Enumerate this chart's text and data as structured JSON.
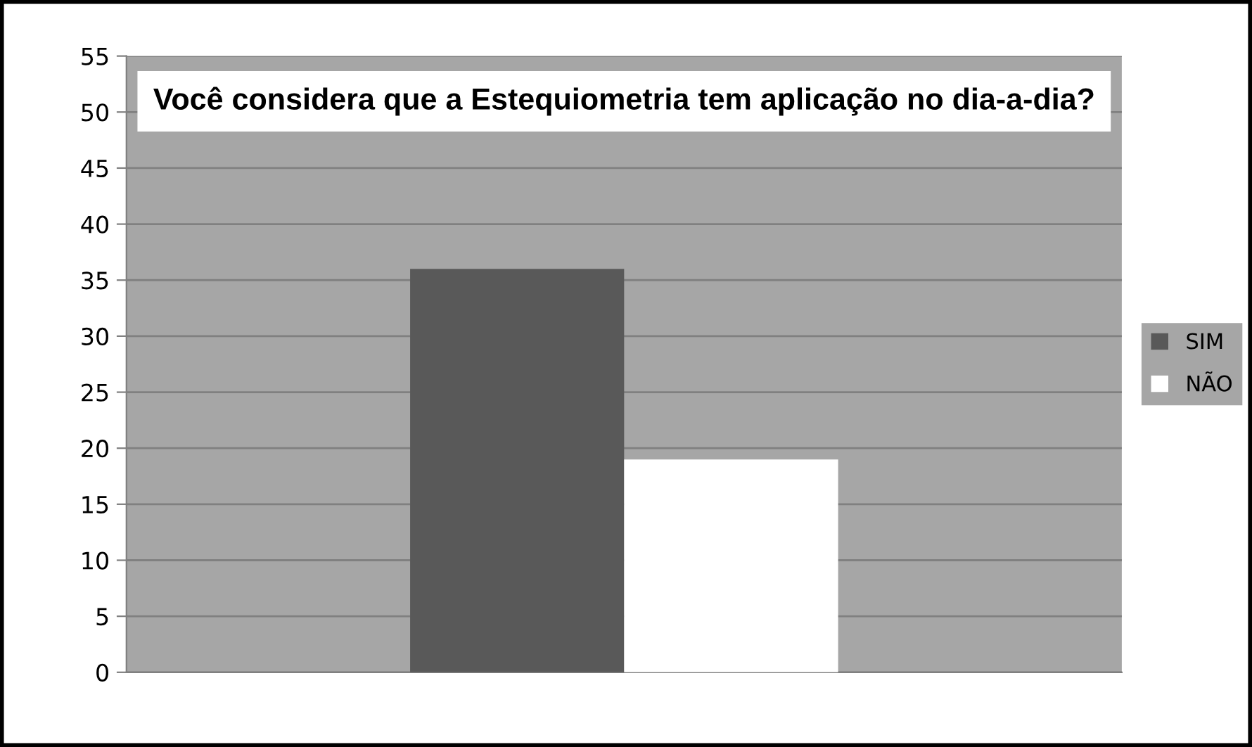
{
  "chart_data": {
    "type": "bar",
    "title": "Você considera que a Estequiometria tem aplicação no dia-a-dia?",
    "categories": [
      null
    ],
    "series": [
      {
        "name": "SIM",
        "color": "#595959",
        "values": [
          36
        ]
      },
      {
        "name": "NÃO",
        "color": "#ffffff",
        "values": [
          19
        ]
      }
    ],
    "ylim": [
      0,
      55
    ],
    "yticks": [
      0,
      5,
      10,
      15,
      20,
      25,
      30,
      35,
      40,
      45,
      50,
      55
    ],
    "grid": "y",
    "legend": "right"
  }
}
